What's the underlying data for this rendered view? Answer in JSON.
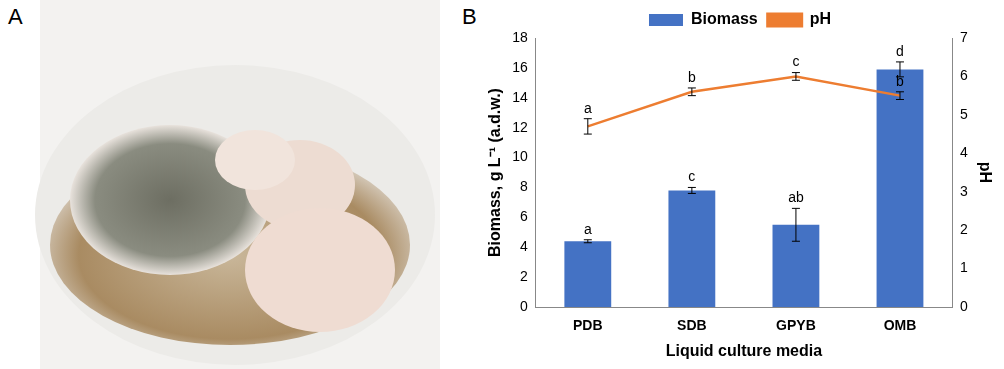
{
  "panel_labels": [
    "A",
    "B"
  ],
  "chart_data": {
    "type": "bar",
    "x_label": "Liquid culture media",
    "y_label": "Biomass, g L⁻¹ (a.d.w.)",
    "y2_label": "pH",
    "categories": [
      "PDB",
      "SDB",
      "GPYB",
      "OMB"
    ],
    "series": [
      {
        "name": "Biomass",
        "type": "bar",
        "color": "#4472c4",
        "values": [
          4.4,
          7.8,
          5.5,
          15.9
        ],
        "errors": [
          0.1,
          0.2,
          1.1,
          0.5
        ],
        "letters": [
          "a",
          "c",
          "ab",
          "d"
        ]
      },
      {
        "name": "pH",
        "type": "line",
        "color": "#ed7d31",
        "axis": "y2",
        "marker": "none",
        "values": [
          4.7,
          5.6,
          6.0,
          5.5
        ],
        "errors": [
          0.2,
          0.1,
          0.1,
          0.1
        ],
        "letters": [
          "a",
          "b",
          "c",
          "b"
        ]
      }
    ],
    "ylim": [
      0,
      18
    ],
    "yticks": [
      0,
      2,
      4,
      6,
      8,
      10,
      12,
      14,
      16,
      18
    ],
    "y2lim": [
      0,
      7
    ],
    "y2ticks": [
      0,
      1,
      2,
      3,
      4,
      5,
      6,
      7
    ],
    "legend": "top",
    "grid": false
  }
}
